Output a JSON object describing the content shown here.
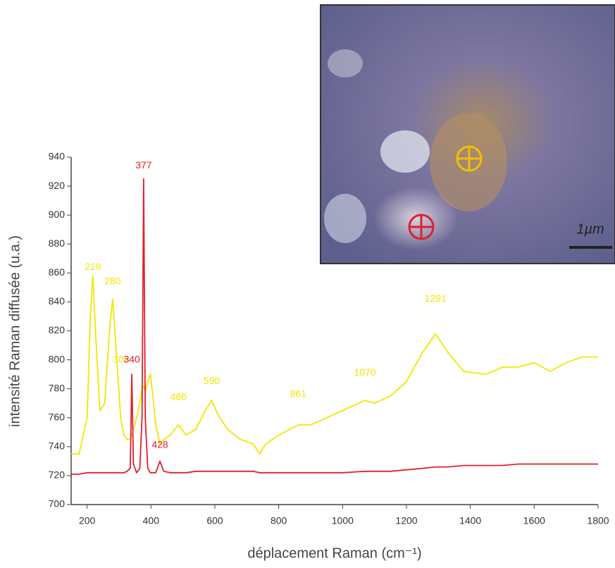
{
  "chart_data": {
    "type": "line",
    "ylabel": "intensité Raman diffusée (u.a.)",
    "xlabel": "déplacement Raman (cm⁻¹)",
    "x": [
      150,
      175,
      200,
      210,
      218,
      226,
      240,
      255,
      270,
      280,
      290,
      305,
      315,
      325,
      335,
      340,
      345,
      355,
      365,
      372,
      377,
      382,
      390,
      398,
      406,
      415,
      428,
      440,
      460,
      486,
      510,
      540,
      570,
      590,
      610,
      640,
      680,
      720,
      740,
      760,
      800,
      861,
      900,
      950,
      1000,
      1070,
      1100,
      1150,
      1200,
      1250,
      1291,
      1330,
      1380,
      1450,
      1500,
      1550,
      1600,
      1650,
      1700,
      1750,
      1800
    ],
    "series": [
      {
        "color": "#f2e600",
        "values": [
          735,
          735,
          760,
          830,
          858,
          820,
          765,
          770,
          820,
          842,
          810,
          760,
          748,
          745,
          745,
          748,
          752,
          760,
          770,
          780,
          782,
          778,
          785,
          790,
          775,
          755,
          742,
          745,
          748,
          755,
          748,
          752,
          765,
          772,
          762,
          752,
          745,
          742,
          735,
          742,
          748,
          755,
          755,
          760,
          765,
          772,
          770,
          775,
          785,
          805,
          818,
          805,
          792,
          790,
          795,
          795,
          798,
          792,
          798,
          802,
          802
        ],
        "peaks": [
          {
            "x": 218,
            "y": 864
          },
          {
            "x": 280,
            "y": 854
          },
          {
            "x": 306,
            "y": 800
          },
          {
            "x": 486,
            "y": 774
          },
          {
            "x": 590,
            "y": 785
          },
          {
            "x": 861,
            "y": 776
          },
          {
            "x": 1070,
            "y": 791
          },
          {
            "x": 1291,
            "y": 842
          }
        ]
      },
      {
        "color": "#e0202a",
        "values": [
          721,
          721,
          722,
          722,
          722,
          722,
          722,
          722,
          722,
          722,
          722,
          722,
          722,
          723,
          725,
          790,
          728,
          722,
          725,
          760,
          925,
          760,
          725,
          722,
          722,
          722,
          730,
          723,
          722,
          722,
          722,
          723,
          723,
          723,
          723,
          723,
          723,
          723,
          722,
          722,
          722,
          722,
          722,
          722,
          722,
          723,
          723,
          723,
          724,
          725,
          726,
          726,
          727,
          727,
          727,
          728,
          728,
          728,
          728,
          728,
          728
        ],
        "peaks": [
          {
            "x": 377,
            "y": 934
          },
          {
            "x": 340,
            "y": 800
          },
          {
            "x": 428,
            "y": 741
          }
        ]
      }
    ],
    "xlim": [
      150,
      1800
    ],
    "xticks": [
      200,
      400,
      600,
      800,
      1000,
      1200,
      1400,
      1600,
      1800
    ],
    "ylim": [
      700,
      940
    ],
    "yticks": [
      700,
      720,
      740,
      760,
      780,
      800,
      820,
      840,
      860,
      880,
      900,
      920,
      940
    ]
  },
  "inset": {
    "scale_label": "1µm"
  }
}
